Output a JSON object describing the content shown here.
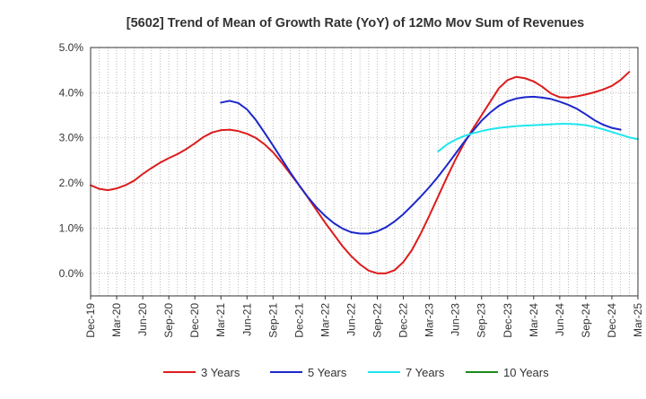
{
  "chart_data": {
    "type": "line",
    "title": "[5602]  Trend of Mean of Growth Rate (YoY) of 12Mo Mov Sum of Revenues",
    "xlabel": "",
    "ylabel": "",
    "ylim": [
      -0.5,
      5.0
    ],
    "y_ticks": [
      0.0,
      1.0,
      2.0,
      3.0,
      4.0,
      5.0
    ],
    "y_tick_labels": [
      "0.0%",
      "1.0%",
      "2.0%",
      "3.0%",
      "4.0%",
      "5.0%"
    ],
    "x_tick_labels": [
      "Dec-19",
      "Mar-20",
      "Jun-20",
      "Sep-20",
      "Dec-20",
      "Mar-21",
      "Jun-21",
      "Sep-21",
      "Dec-21",
      "Mar-22",
      "Jun-22",
      "Sep-22",
      "Dec-22",
      "Mar-23",
      "Jun-23",
      "Sep-23",
      "Dec-23",
      "Mar-24",
      "Jun-24",
      "Sep-24",
      "Dec-24",
      "Mar-25"
    ],
    "x_months_total": 63,
    "grid": true,
    "legend_position": "bottom",
    "series": [
      {
        "name": "3 Years",
        "color": "#dd1c1c",
        "start_month": 0,
        "values": [
          1.95,
          1.87,
          1.84,
          1.88,
          1.95,
          2.05,
          2.2,
          2.33,
          2.45,
          2.55,
          2.64,
          2.75,
          2.88,
          3.02,
          3.12,
          3.17,
          3.18,
          3.15,
          3.09,
          3.0,
          2.86,
          2.68,
          2.45,
          2.2,
          1.95,
          1.68,
          1.4,
          1.12,
          0.86,
          0.6,
          0.38,
          0.2,
          0.06,
          0.0,
          0.0,
          0.07,
          0.25,
          0.52,
          0.88,
          1.28,
          1.7,
          2.12,
          2.52,
          2.88,
          3.2,
          3.5,
          3.8,
          4.1,
          4.28,
          4.35,
          4.32,
          4.25,
          4.13,
          3.98,
          3.9,
          3.89,
          3.92,
          3.96,
          4.01,
          4.07,
          4.15,
          4.28,
          4.46
        ]
      },
      {
        "name": "5 Years",
        "color": "#1c27cc",
        "start_month": 15,
        "values": [
          3.78,
          3.82,
          3.77,
          3.63,
          3.4,
          3.12,
          2.83,
          2.53,
          2.23,
          1.95,
          1.69,
          1.46,
          1.27,
          1.11,
          0.99,
          0.91,
          0.88,
          0.88,
          0.93,
          1.02,
          1.15,
          1.31,
          1.5,
          1.7,
          1.91,
          2.14,
          2.39,
          2.65,
          2.91,
          3.15,
          3.38,
          3.56,
          3.71,
          3.81,
          3.87,
          3.9,
          3.91,
          3.89,
          3.86,
          3.8,
          3.73,
          3.64,
          3.52,
          3.39,
          3.29,
          3.22,
          3.18
        ]
      },
      {
        "name": "7 Years",
        "color": "#1ee6ee",
        "start_month": 40,
        "values": [
          2.7,
          2.85,
          2.96,
          3.04,
          3.1,
          3.15,
          3.19,
          3.22,
          3.24,
          3.26,
          3.27,
          3.28,
          3.29,
          3.3,
          3.31,
          3.31,
          3.3,
          3.28,
          3.24,
          3.19,
          3.13,
          3.07,
          3.01,
          2.97
        ]
      },
      {
        "name": "10 Years",
        "color": "#1a8a1a",
        "start_month": 0,
        "values": []
      }
    ]
  }
}
